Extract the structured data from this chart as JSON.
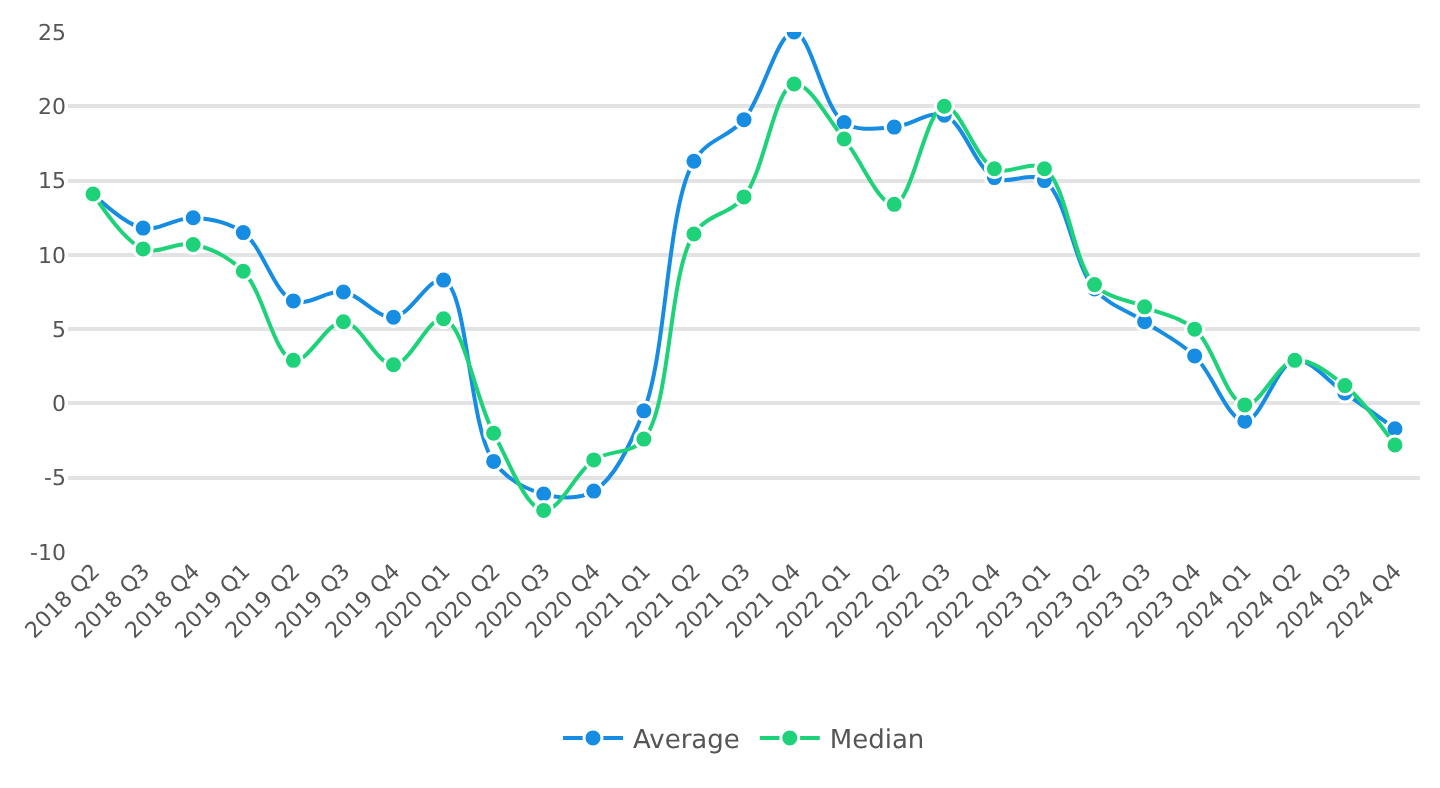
{
  "chart_data": {
    "type": "line",
    "categories": [
      "2018 Q2",
      "2018 Q3",
      "2018 Q4",
      "2019 Q1",
      "2019 Q2",
      "2019 Q3",
      "2019 Q4",
      "2020 Q1",
      "2020 Q2",
      "2020 Q3",
      "2020 Q4",
      "2021 Q1",
      "2021 Q2",
      "2021 Q3",
      "2021 Q4",
      "2022 Q1",
      "2022 Q2",
      "2022 Q3",
      "2022 Q4",
      "2023 Q1",
      "2023 Q2",
      "2023 Q3",
      "2023 Q4",
      "2024 Q1",
      "2024 Q2",
      "2024 Q3",
      "2024 Q4"
    ],
    "series": [
      {
        "name": "Average",
        "color": "#168de2",
        "values": [
          14.1,
          11.8,
          12.5,
          11.5,
          6.9,
          7.5,
          5.8,
          8.3,
          -3.9,
          -6.1,
          -5.9,
          -0.5,
          16.3,
          19.1,
          25.0,
          18.9,
          18.6,
          19.4,
          15.2,
          15.0,
          7.7,
          5.5,
          3.2,
          -1.2,
          2.9,
          0.7,
          -1.7
        ]
      },
      {
        "name": "Median",
        "color": "#1ed27a",
        "values": [
          14.1,
          10.4,
          10.7,
          8.9,
          2.9,
          5.5,
          2.6,
          5.7,
          -2.0,
          -7.2,
          -3.8,
          -2.4,
          11.4,
          13.9,
          21.5,
          17.8,
          13.4,
          20.0,
          15.8,
          15.8,
          8.0,
          6.5,
          5.0,
          -0.1,
          2.9,
          1.2,
          -2.8
        ]
      }
    ],
    "ylim": [
      -10,
      25
    ],
    "yticks": [
      -10,
      -5,
      0,
      5,
      10,
      15,
      20,
      25
    ],
    "grid": "y",
    "legend": "bottom",
    "marker": "circle",
    "line_style": "solid"
  }
}
